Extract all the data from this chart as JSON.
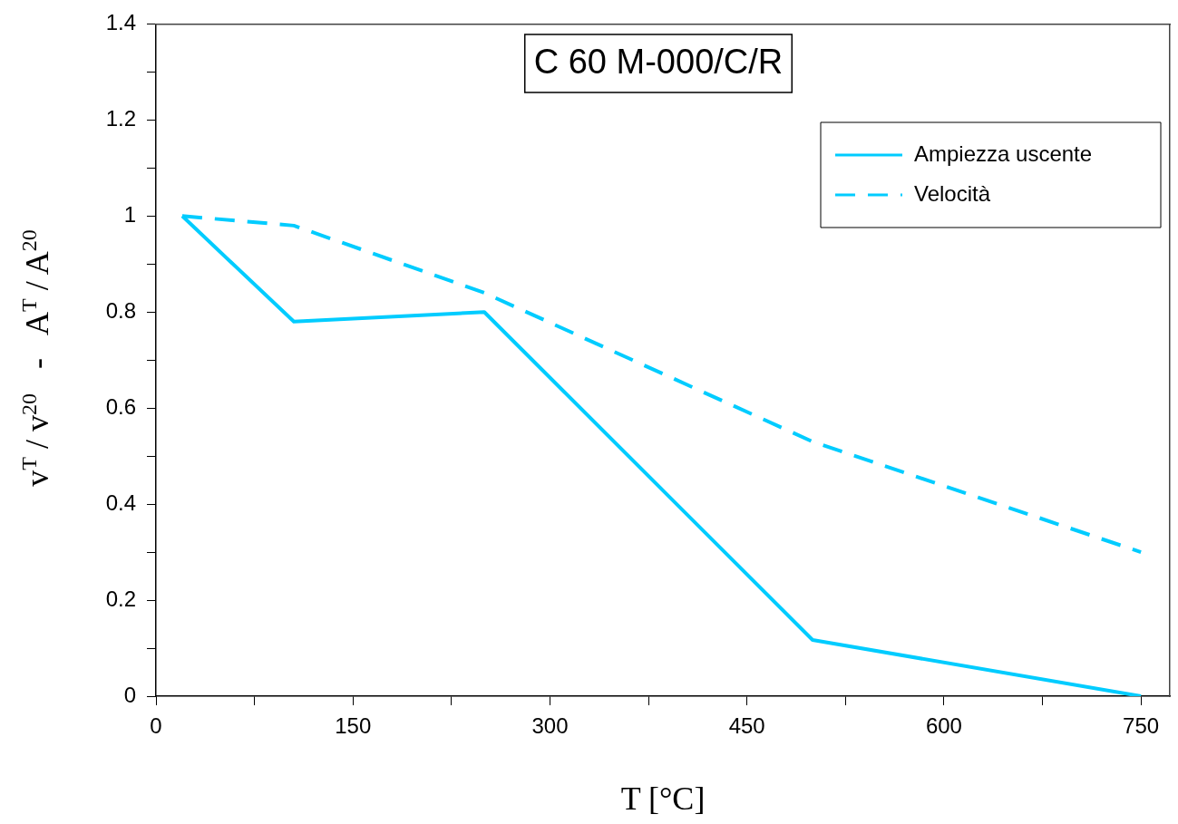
{
  "chart_data": {
    "type": "line",
    "title": "C 60 M-000/C/R",
    "xlabel": "T [°C]",
    "ylabel": "v$^{T}$ / v$^{20}$   -   A$^{T}$ / A$^{20}$",
    "series": [
      {
        "name": "Ampiezza uscente",
        "color": "#00ccff",
        "line_style": "solid",
        "x": [
          20,
          105,
          250,
          500,
          750
        ],
        "values": [
          1,
          0.78,
          0.8,
          0.117,
          0
        ]
      },
      {
        "name": "Velocità",
        "color": "#00ccff",
        "line_style": "dashed",
        "x": [
          20,
          105,
          250,
          500,
          750
        ],
        "values": [
          1,
          0.98,
          0.84,
          0.53,
          0.3
        ]
      }
    ],
    "xlim": [
      0,
      772
    ],
    "xticks": [
      0,
      {
        "value": 75,
        "label": null
      },
      150,
      {
        "value": 225,
        "label": null
      },
      300,
      {
        "value": 375,
        "label": null
      },
      450,
      {
        "value": 525,
        "label": null
      },
      600,
      {
        "value": 675,
        "label": null
      },
      750
    ],
    "ylim": [
      0,
      1.4
    ],
    "yticks": [
      0,
      {
        "value": 0.1,
        "label": null
      },
      0.2,
      {
        "value": 0.3,
        "label": null
      },
      0.4,
      {
        "value": 0.5,
        "label": null
      },
      0.6,
      {
        "value": 0.7,
        "label": null
      },
      0.8,
      {
        "value": 0.9,
        "label": null
      },
      1,
      {
        "value": 1.1,
        "label": null
      },
      1.2,
      {
        "value": 1.3,
        "label": null
      },
      1.4
    ],
    "grid": false,
    "legend": "top right",
    "marker": "none"
  }
}
